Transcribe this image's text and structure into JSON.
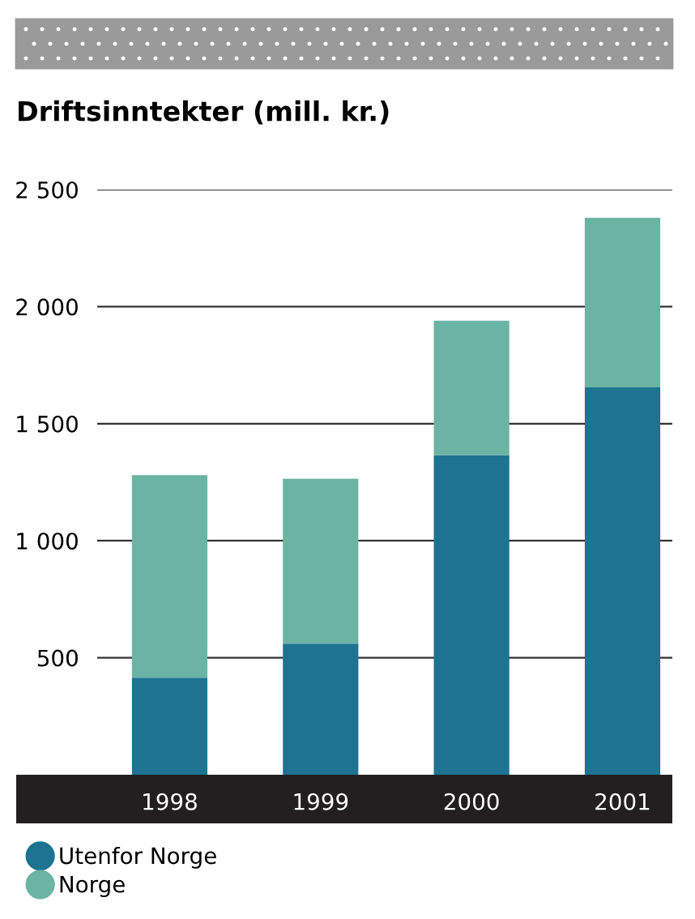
{
  "chart_data": {
    "type": "bar",
    "title": "Driftsinntekter (mill. kr.)",
    "categories": [
      "1998",
      "1999",
      "2000",
      "2001"
    ],
    "series": [
      {
        "name": "Utenfor Norge",
        "color": "#1d7391",
        "values": [
          415,
          560,
          1365,
          1655
        ]
      },
      {
        "name": "Norge",
        "color": "#6bb3a3",
        "values": [
          865,
          705,
          575,
          725
        ]
      }
    ],
    "stacked": true,
    "ylim": [
      0,
      2500
    ],
    "yticks": [
      {
        "value": 500,
        "label": "500"
      },
      {
        "value": 1000,
        "label": "1 000"
      },
      {
        "value": 1500,
        "label": "1 500"
      },
      {
        "value": 2000,
        "label": "2 000"
      },
      {
        "value": 2500,
        "label": "2 500"
      }
    ],
    "grid": "y",
    "legend": "bottom"
  }
}
